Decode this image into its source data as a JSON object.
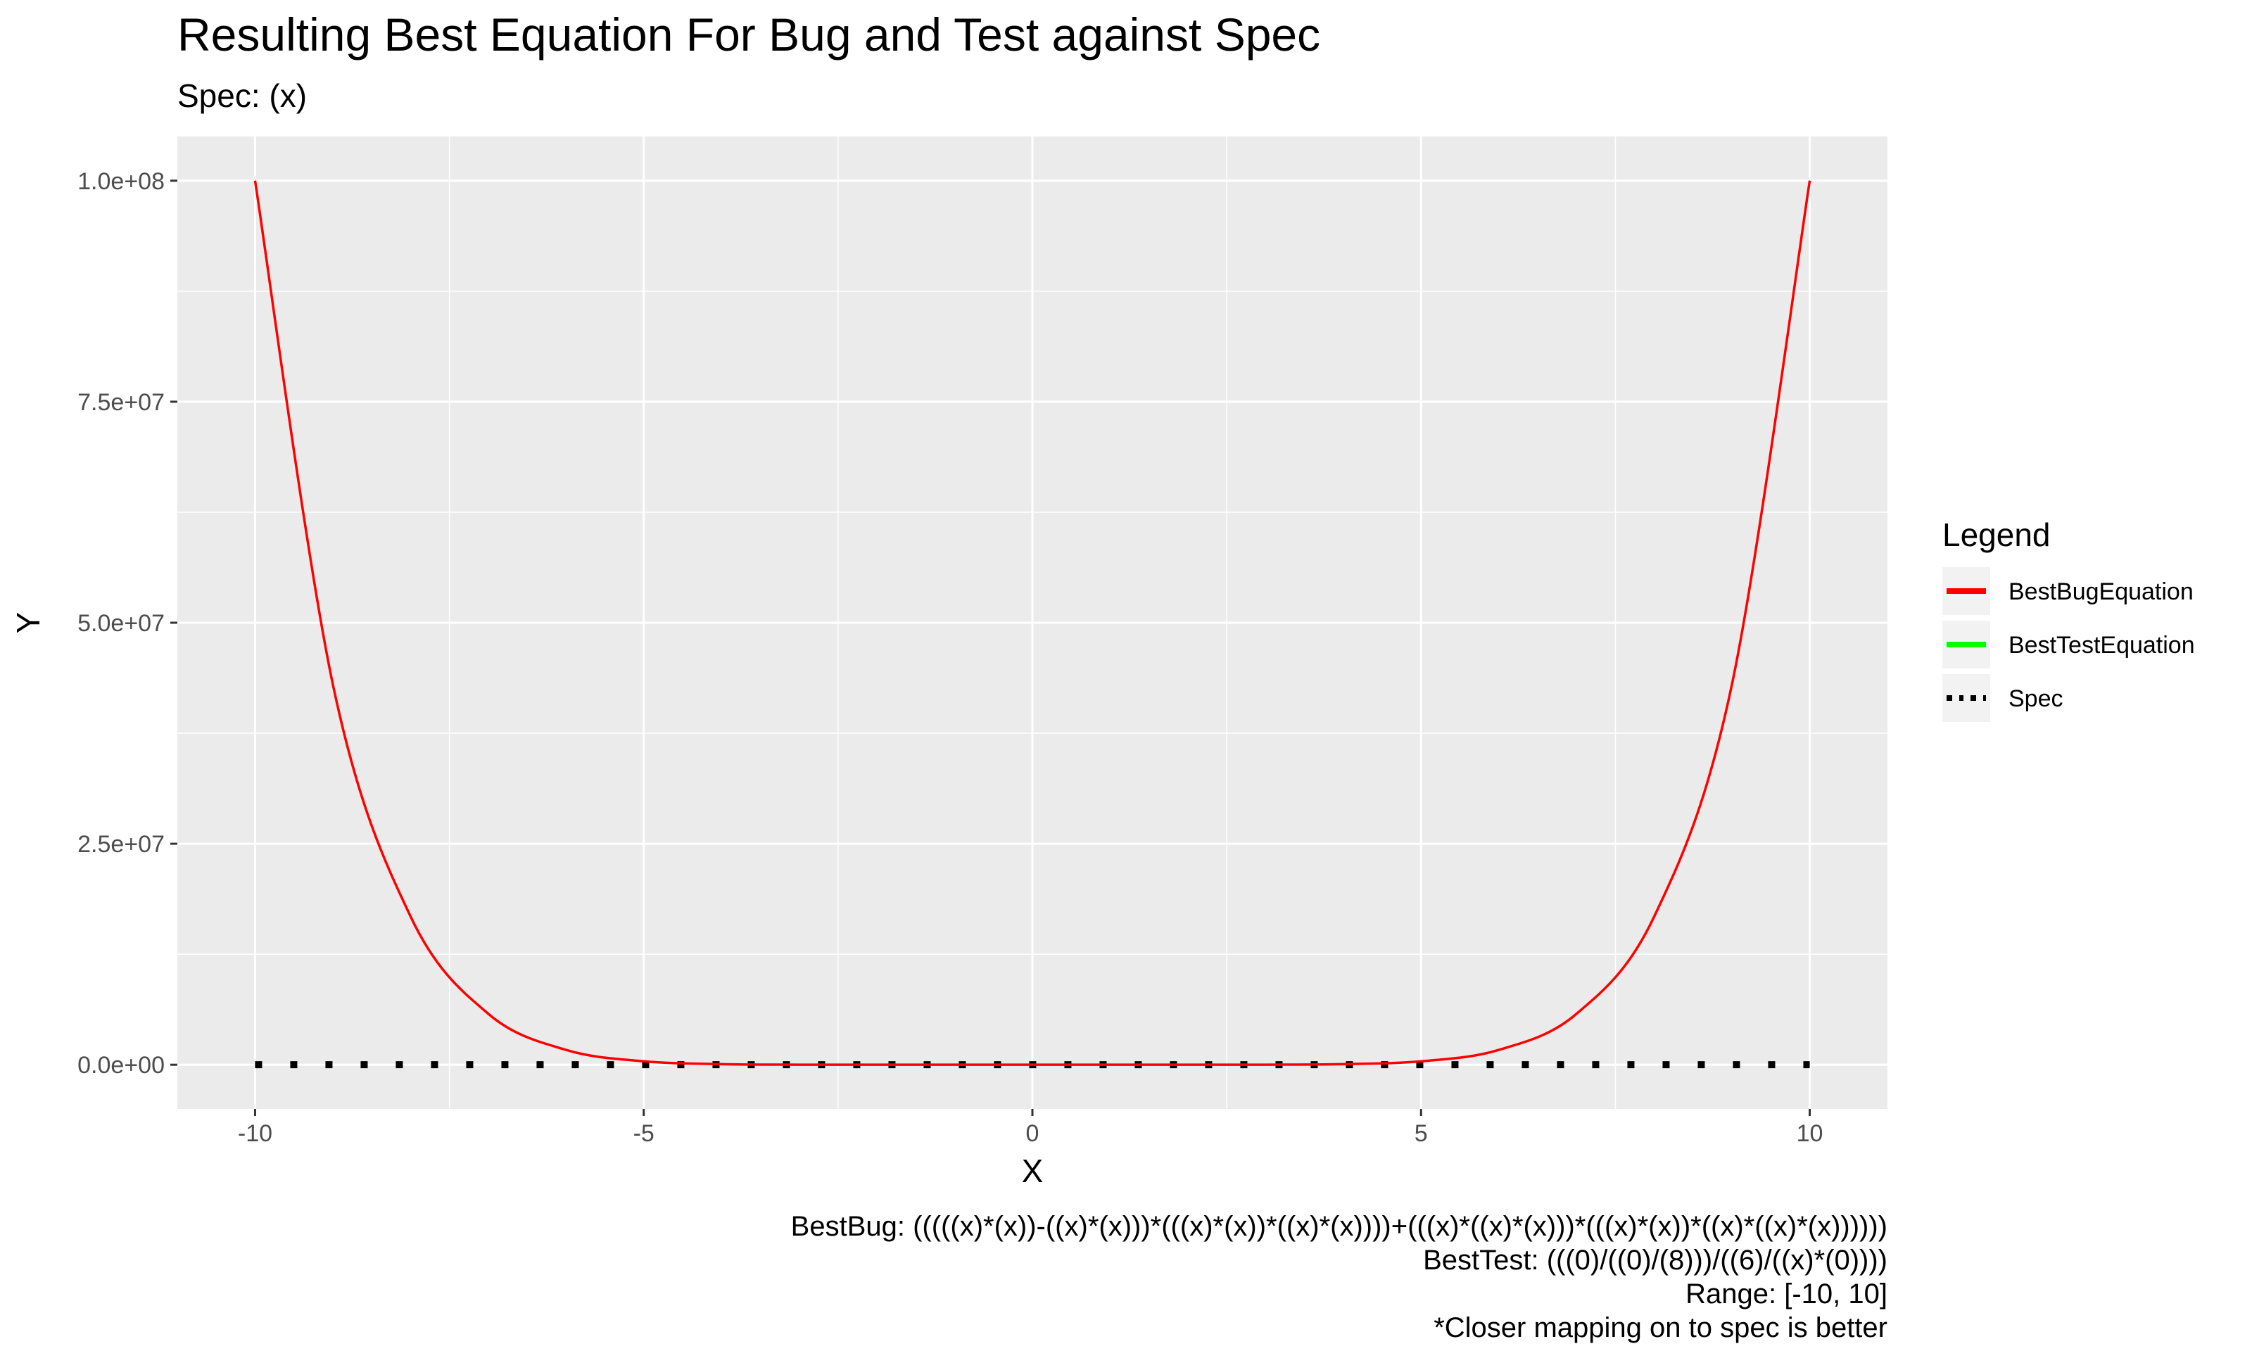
{
  "chart_data": {
    "type": "line",
    "title": "Resulting Best Equation For Bug and Test against Spec",
    "subtitle": "Spec: (x)",
    "xlabel": "X",
    "ylabel": "Y",
    "xlim": [
      -11,
      11
    ],
    "ylim": [
      -5000000,
      105000000
    ],
    "x_ticks": [
      -10,
      -5,
      0,
      5,
      10
    ],
    "x_tick_labels": [
      "-10",
      "-5",
      "0",
      "5",
      "10"
    ],
    "y_ticks": [
      0,
      25000000,
      50000000,
      75000000,
      100000000
    ],
    "y_tick_labels": [
      "0.0e+00",
      "2.5e+07",
      "5.0e+07",
      "7.5e+07",
      "1.0e+08"
    ],
    "grid": true,
    "legend": {
      "title": "Legend",
      "position": "right",
      "entries": [
        {
          "label": "BestBugEquation",
          "color": "#ff0000",
          "style": "solid"
        },
        {
          "label": "BestTestEquation",
          "color": "#00ff00",
          "style": "solid"
        },
        {
          "label": "Spec",
          "color": "#000000",
          "style": "dotted"
        }
      ]
    },
    "x": [
      -10,
      -9,
      -8,
      -7,
      -6,
      -5,
      -4,
      -3,
      -2,
      -1,
      0,
      1,
      2,
      3,
      4,
      5,
      6,
      7,
      8,
      9,
      10
    ],
    "series": [
      {
        "name": "BestBugEquation",
        "color": "#ff0000",
        "style": "solid",
        "values": [
          100000000,
          43046721,
          16777216,
          5764801,
          1679616,
          390625,
          65536,
          6561,
          256,
          1,
          0,
          1,
          256,
          6561,
          65536,
          390625,
          1679616,
          5764801,
          16777216,
          43046721,
          100000000
        ]
      },
      {
        "name": "Spec",
        "color": "#000000",
        "style": "dotted",
        "values": [
          -10,
          -9,
          -8,
          -7,
          -6,
          -5,
          -4,
          -3,
          -2,
          -1,
          0,
          1,
          2,
          3,
          4,
          5,
          6,
          7,
          8,
          9,
          10
        ]
      }
    ],
    "captions": [
      "BestBug: (((((x)*(x))-((x)*(x)))*(((x)*(x))*((x)*(x))))+(((x)*((x)*(x)))*(((x)*(x))*((x)*((x)*(x))))))",
      "BestTest: (((0)/((0)/(8)))/((6)/((x)*(0))))",
      "Range: [-10, 10]",
      "*Closer mapping on to spec is better"
    ]
  }
}
